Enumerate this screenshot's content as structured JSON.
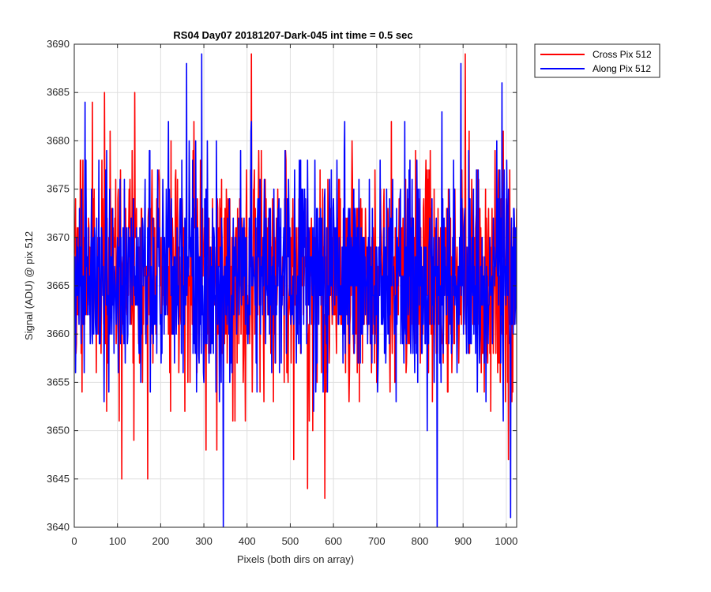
{
  "chart_data": {
    "type": "line",
    "title": "RS04 Day07 20181207-Dark-045 int time = 0.5 sec",
    "xlabel": "Pixels (both dirs on array)",
    "ylabel": "Signal (ADU) @ pix 512",
    "xlim": [
      0,
      1024
    ],
    "ylim": [
      3640,
      3690
    ],
    "xticks": [
      0,
      100,
      200,
      300,
      400,
      500,
      600,
      700,
      800,
      900,
      1000
    ],
    "yticks": [
      3640,
      3645,
      3650,
      3655,
      3660,
      3665,
      3670,
      3675,
      3680,
      3685,
      3690
    ],
    "grid": true,
    "legend_position": "outside-top-right",
    "series": [
      {
        "name": "Cross Pix 512",
        "color": "#ff0000",
        "mean": 3666,
        "x_sample": [
          0,
          70,
          110,
          140,
          170,
          410,
          540,
          575,
          580,
          905,
          1005
        ],
        "y_sample": [
          3668,
          3685,
          3645,
          3685,
          3645,
          3689,
          3644,
          3675,
          3643,
          3689,
          3647
        ]
      },
      {
        "name": "Along Pix 512",
        "color": "#0000ff",
        "mean": 3666,
        "x_sample": [
          0,
          25,
          260,
          295,
          345,
          410,
          840,
          895,
          990,
          1010
        ],
        "y_sample": [
          3668,
          3684,
          3688,
          3689,
          3640,
          3682,
          3640,
          3688,
          3686,
          3641
        ]
      }
    ]
  }
}
